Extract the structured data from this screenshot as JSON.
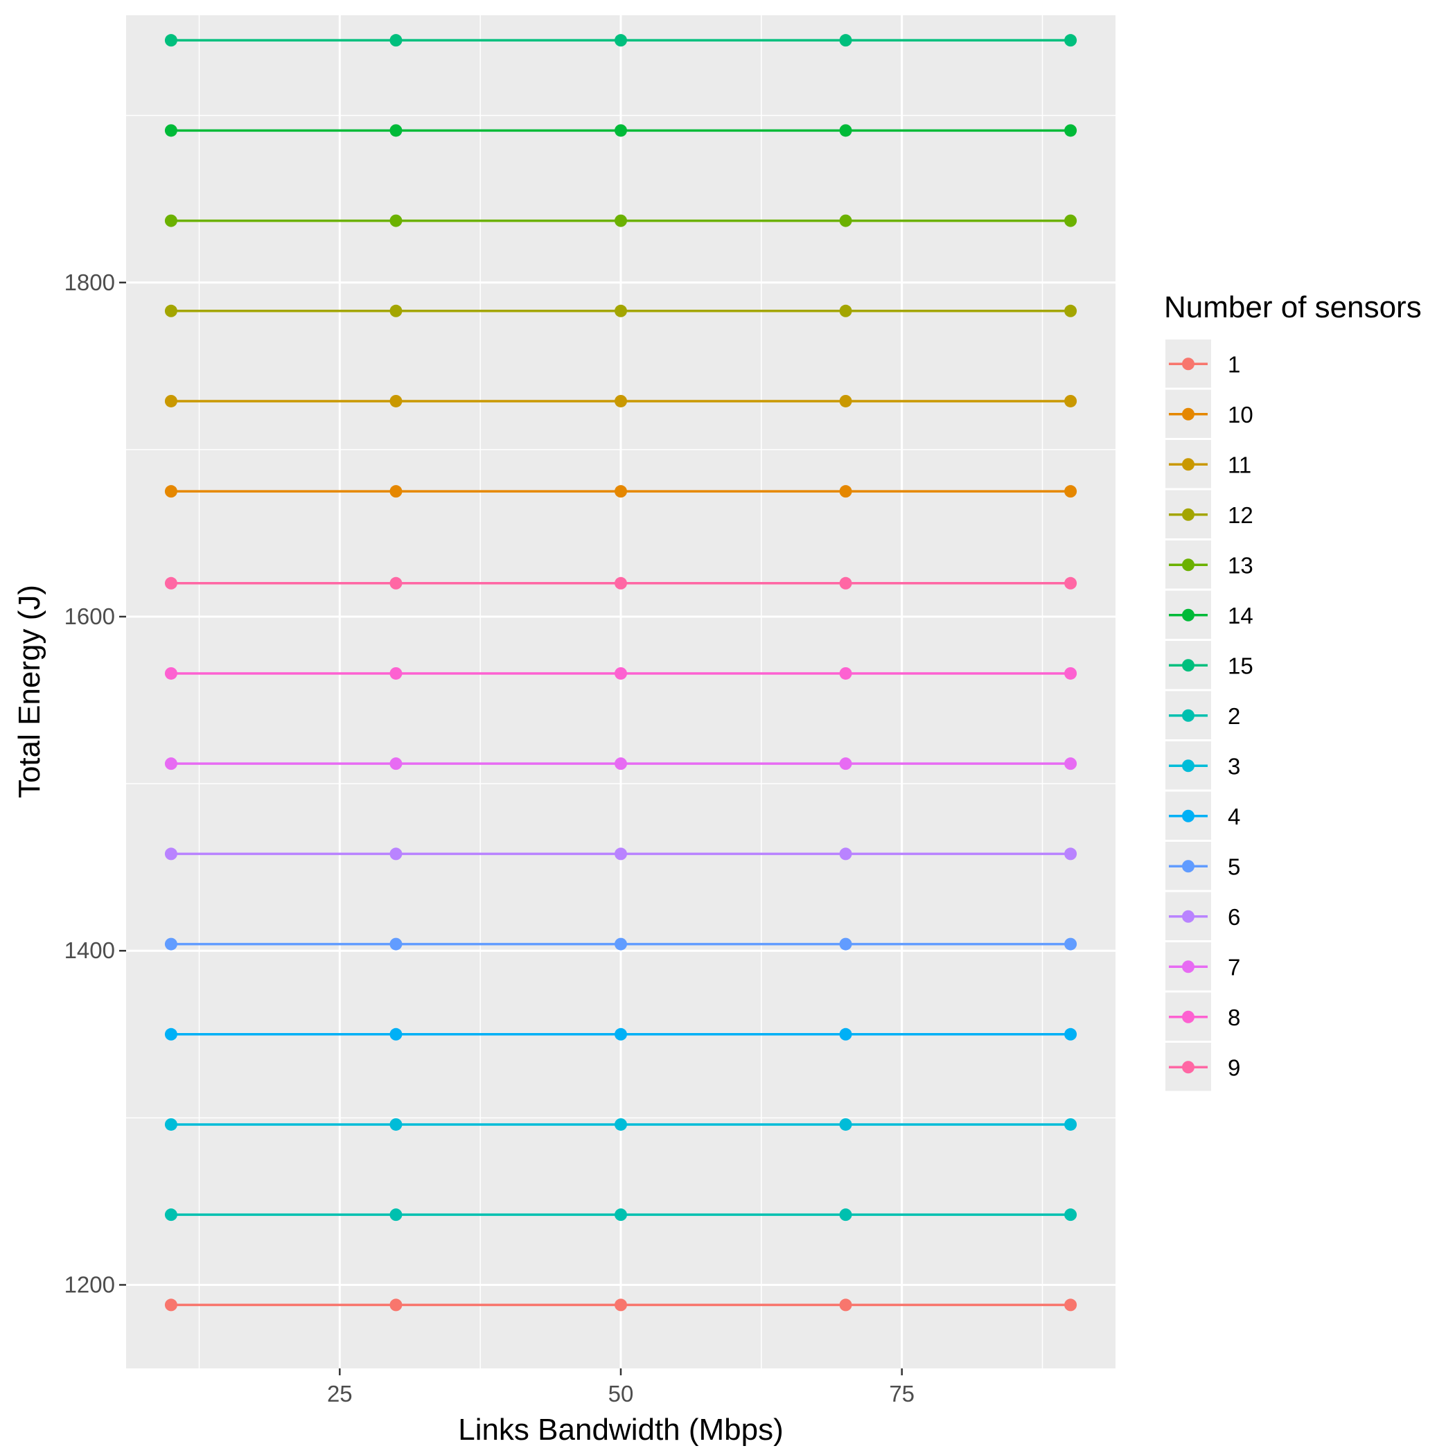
{
  "chart_data": {
    "type": "line",
    "xlabel": "Links Bandwidth (Mbps)",
    "ylabel": "Total Energy (J)",
    "xlim": [
      6,
      94
    ],
    "ylim": [
      1150,
      1960
    ],
    "x": [
      10,
      30,
      50,
      70,
      90
    ],
    "x_ticks": [
      25,
      50,
      75
    ],
    "y_ticks": [
      1200,
      1400,
      1600,
      1800
    ],
    "grid": true,
    "legend_title": "Number of sensors",
    "legend_position": "right",
    "series": [
      {
        "name": "1",
        "color": "#F8766D",
        "values": [
          1188,
          1188,
          1188,
          1188,
          1188
        ]
      },
      {
        "name": "10",
        "color": "#E58700",
        "values": [
          1675,
          1675,
          1675,
          1675,
          1675
        ]
      },
      {
        "name": "11",
        "color": "#C99800",
        "values": [
          1729,
          1729,
          1729,
          1729,
          1729
        ]
      },
      {
        "name": "12",
        "color": "#A3A500",
        "values": [
          1783,
          1783,
          1783,
          1783,
          1783
        ]
      },
      {
        "name": "13",
        "color": "#6BB100",
        "values": [
          1837,
          1837,
          1837,
          1837,
          1837
        ]
      },
      {
        "name": "14",
        "color": "#00BA38",
        "values": [
          1891,
          1891,
          1891,
          1891,
          1891
        ]
      },
      {
        "name": "15",
        "color": "#00BF7D",
        "values": [
          1945,
          1945,
          1945,
          1945,
          1945
        ]
      },
      {
        "name": "2",
        "color": "#00C0AF",
        "values": [
          1242,
          1242,
          1242,
          1242,
          1242
        ]
      },
      {
        "name": "3",
        "color": "#00BCD8",
        "values": [
          1296,
          1296,
          1296,
          1296,
          1296
        ]
      },
      {
        "name": "4",
        "color": "#00B0F6",
        "values": [
          1350,
          1350,
          1350,
          1350,
          1350
        ]
      },
      {
        "name": "5",
        "color": "#619CFF",
        "values": [
          1404,
          1404,
          1404,
          1404,
          1404
        ]
      },
      {
        "name": "6",
        "color": "#B983FF",
        "values": [
          1458,
          1458,
          1458,
          1458,
          1458
        ]
      },
      {
        "name": "7",
        "color": "#E76BF3",
        "values": [
          1512,
          1512,
          1512,
          1512,
          1512
        ]
      },
      {
        "name": "8",
        "color": "#FD61D1",
        "values": [
          1566,
          1566,
          1566,
          1566,
          1566
        ]
      },
      {
        "name": "9",
        "color": "#FF67A4",
        "values": [
          1620,
          1620,
          1620,
          1620,
          1620
        ]
      }
    ]
  },
  "colors": {
    "panel_background": "#EBEBEB",
    "grid_major": "#FFFFFF",
    "axis_tick": "#333333"
  }
}
